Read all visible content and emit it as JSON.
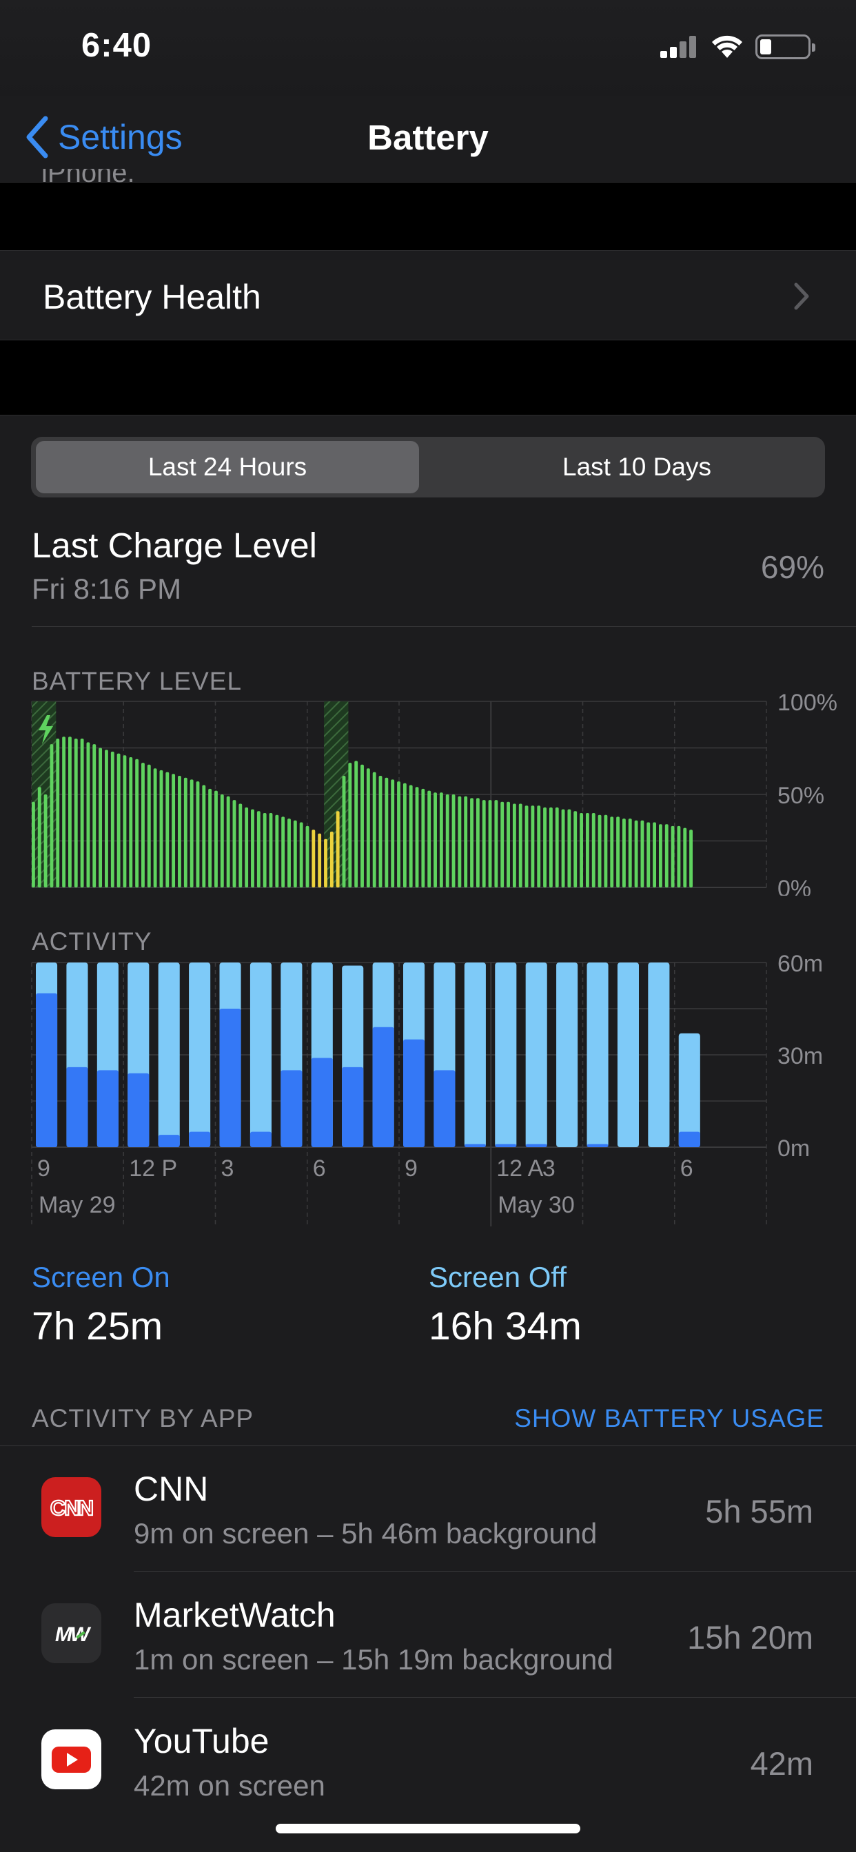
{
  "status_bar": {
    "time": "6:40"
  },
  "nav": {
    "back_label": "Settings",
    "title": "Battery"
  },
  "cut_text": "iPhone.",
  "battery_health": {
    "label": "Battery Health"
  },
  "segment": {
    "options": [
      "Last 24 Hours",
      "Last 10 Days"
    ],
    "selected": "Last 24 Hours"
  },
  "last_charge": {
    "title": "Last Charge Level",
    "time": "Fri 8:16 PM",
    "value": "69%"
  },
  "battery_level_header": "BATTERY LEVEL",
  "activity_header": "ACTIVITY",
  "colors": {
    "battery_green": "#5fd35f",
    "battery_yellow": "#ecd23d",
    "screen_on_blue": "#3478f6",
    "screen_off_blue": "#7ecaf8",
    "link_blue": "#3a8cf2"
  },
  "chart_data": [
    {
      "type": "bar",
      "title": "BATTERY LEVEL",
      "y_unit": "%",
      "ylim": [
        0,
        100
      ],
      "y_ticks": [
        "100%",
        "50%",
        "0%"
      ],
      "charging_windows_bar_index": [
        [
          0,
          3
        ],
        [
          48,
          51
        ]
      ],
      "low_power_bar_index": [
        [
          46,
          50
        ]
      ],
      "values": [
        46,
        54,
        50,
        77,
        80,
        81,
        81,
        80,
        80,
        78,
        77,
        75,
        74,
        73,
        72,
        71,
        70,
        69,
        67,
        66,
        64,
        63,
        62,
        61,
        60,
        59,
        58,
        57,
        55,
        53,
        52,
        50,
        49,
        47,
        45,
        43,
        42,
        41,
        40,
        40,
        39,
        38,
        37,
        36,
        35,
        33,
        31,
        29,
        26,
        30,
        41,
        60,
        67,
        68,
        66,
        64,
        62,
        60,
        59,
        58,
        57,
        56,
        55,
        54,
        53,
        52,
        51,
        51,
        50,
        50,
        49,
        49,
        48,
        48,
        47,
        47,
        47,
        46,
        46,
        45,
        45,
        44,
        44,
        44,
        43,
        43,
        43,
        42,
        42,
        41,
        40,
        40,
        40,
        39,
        39,
        38,
        38,
        37,
        37,
        36,
        36,
        35,
        35,
        34,
        34,
        33,
        33,
        32,
        31
      ]
    },
    {
      "type": "bar",
      "title": "ACTIVITY",
      "y_unit": "minutes",
      "ylim": [
        0,
        60
      ],
      "y_ticks": [
        "60m",
        "30m",
        "0m"
      ],
      "series": [
        {
          "name": "Screen On",
          "values": [
            50,
            26,
            25,
            24,
            4,
            5,
            45,
            5,
            25,
            29,
            26,
            39,
            35,
            25,
            1,
            1,
            1,
            0,
            1,
            0,
            0,
            5
          ]
        },
        {
          "name": "Screen Off",
          "values": [
            10,
            34,
            35,
            36,
            56,
            55,
            15,
            55,
            35,
            31,
            33,
            21,
            25,
            35,
            59,
            59,
            59,
            60,
            59,
            60,
            60,
            32
          ]
        }
      ],
      "x_ticks": [
        "9",
        "12 P",
        "3",
        "6",
        "9",
        "12 A",
        "3",
        "6"
      ],
      "date_labels": [
        "May 29",
        "May 30"
      ]
    }
  ],
  "legend": {
    "screen_on": {
      "label": "Screen On",
      "value": "7h 25m"
    },
    "screen_off": {
      "label": "Screen Off",
      "value": "16h 34m"
    }
  },
  "activity_by_app": {
    "header": "ACTIVITY BY APP",
    "link": "SHOW BATTERY USAGE",
    "apps": [
      {
        "name": "CNN",
        "detail": "9m on screen – 5h 46m background",
        "usage": "5h 55m",
        "icon_text": "CNN"
      },
      {
        "name": "MarketWatch",
        "detail": "1m on screen – 15h 19m background",
        "usage": "15h 20m",
        "icon_text": "MW"
      },
      {
        "name": "YouTube",
        "detail": "42m on screen",
        "usage": "42m"
      }
    ]
  }
}
